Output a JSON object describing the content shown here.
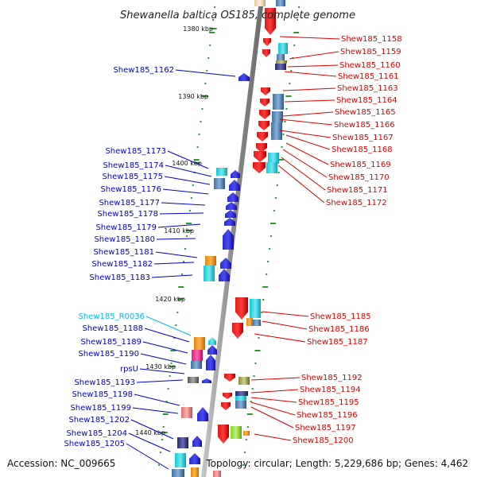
{
  "title": "Shewanella baltica OS185, complete genome",
  "footer": {
    "accession": "Accession: NC_009665",
    "stats": "Topology: circular; Length: 5,229,686 bp; Genes: 4,462"
  },
  "colors": {
    "left_labels": "#0000cc",
    "right_labels": "#dd0000",
    "rna_label": "#00bbee",
    "backbone": "#9a9a9a",
    "tick": "#2e9a2e"
  },
  "kbp_labels": [
    "1380 kbp",
    "1390 kbp",
    "1400 kbp",
    "1410 kbp",
    "1420 kbp",
    "1430 kbp",
    "1440 kbp"
  ],
  "left_genes": [
    {
      "label": "Shew185_1162",
      "color": "blue"
    },
    {
      "label": "Shew185_1173",
      "color": "blue"
    },
    {
      "label": "Shew185_1174",
      "color": "blue"
    },
    {
      "label": "Shew185_1175",
      "color": "blue"
    },
    {
      "label": "Shew185_1176",
      "color": "blue"
    },
    {
      "label": "Shew185_1177",
      "color": "blue"
    },
    {
      "label": "Shew185_1178",
      "color": "blue"
    },
    {
      "label": "Shew185_1179",
      "color": "blue"
    },
    {
      "label": "Shew185_1180",
      "color": "blue"
    },
    {
      "label": "Shew185_1181",
      "color": "blue"
    },
    {
      "label": "Shew185_1182",
      "color": "blue"
    },
    {
      "label": "Shew185_1183",
      "color": "blue"
    },
    {
      "label": "Shew185_R0036",
      "color": "cyan"
    },
    {
      "label": "Shew185_1188",
      "color": "blue"
    },
    {
      "label": "Shew185_1189",
      "color": "blue"
    },
    {
      "label": "Shew185_1190",
      "color": "blue"
    },
    {
      "label": "rpsU",
      "color": "blue"
    },
    {
      "label": "Shew185_1193",
      "color": "blue"
    },
    {
      "label": "Shew185_1198",
      "color": "blue"
    },
    {
      "label": "Shew185_1199",
      "color": "blue"
    },
    {
      "label": "Shew185_1202",
      "color": "blue"
    },
    {
      "label": "Shew185_1204",
      "color": "blue"
    },
    {
      "label": "Shew185_1205",
      "color": "blue"
    }
  ],
  "right_genes": [
    "Shew185_1158",
    "Shew185_1159",
    "Shew185_1160",
    "Shew185_1161",
    "Shew185_1163",
    "Shew185_1164",
    "Shew185_1165",
    "Shew185_1166",
    "Shew185_1167",
    "Shew185_1168",
    "Shew185_1169",
    "Shew185_1170",
    "Shew185_1171",
    "Shew185_1172",
    "Shew185_1185",
    "Shew185_1186",
    "Shew185_1187",
    "Shew185_1192",
    "Shew185_1194",
    "Shew185_1195",
    "Shew185_1196",
    "Shew185_1197",
    "Shew185_1200"
  ]
}
